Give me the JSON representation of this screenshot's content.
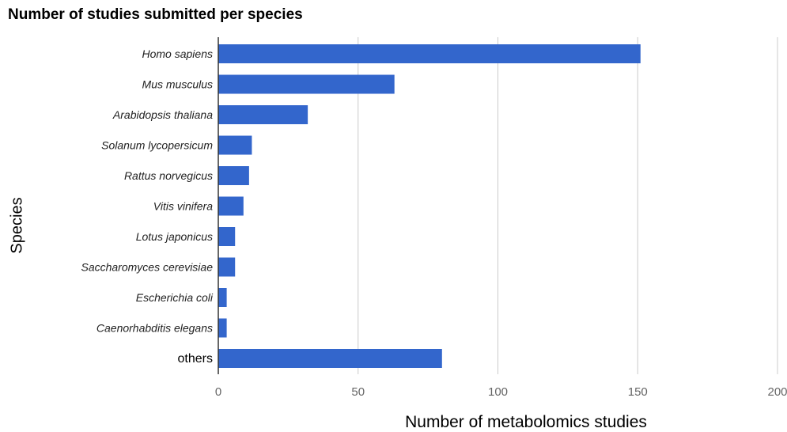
{
  "chart_data": {
    "type": "bar",
    "orientation": "horizontal",
    "title": "Number of studies submitted per species",
    "xlabel": "Number of metabolomics studies",
    "ylabel": "Species",
    "categories": [
      "Homo sapiens",
      "Mus musculus",
      "Arabidopsis thaliana",
      "Solanum lycopersicum",
      "Rattus norvegicus",
      "Vitis vinifera",
      "Lotus japonicus",
      "Saccharomyces cerevisiae",
      "Escherichia coli",
      "Caenorhabditis elegans",
      "others"
    ],
    "italic_categories": [
      true,
      true,
      true,
      true,
      true,
      true,
      true,
      true,
      true,
      true,
      false
    ],
    "values": [
      151,
      63,
      32,
      12,
      11,
      9,
      6,
      6,
      3,
      3,
      80
    ],
    "xlim": [
      0,
      200
    ],
    "xticks": [
      0,
      50,
      100,
      150,
      200
    ],
    "xtick_labels": [
      "0",
      "50",
      "100",
      "150",
      "200"
    ],
    "grid": true,
    "legend": "none",
    "bar_color": "#3366cc",
    "grid_color": "#cccccc"
  }
}
